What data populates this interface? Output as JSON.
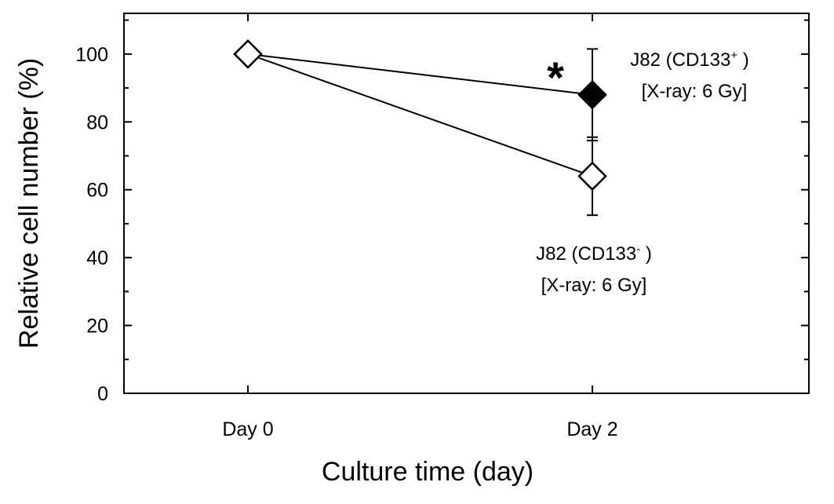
{
  "chart_data": {
    "type": "line",
    "title": "",
    "xlabel": "Culture time (day)",
    "ylabel": "Relative cell number (%)",
    "categories": [
      "Day 0",
      "Day 2"
    ],
    "ylim": [
      0,
      112
    ],
    "yticks": [
      0,
      20,
      40,
      60,
      80,
      100
    ],
    "grid": false,
    "series": [
      {
        "name_line1": "J82 (CD133",
        "name_sup": "+",
        "name_line1_end": " )",
        "name_line2": "[X-ray: 6 Gy]",
        "marker": "filled-diamond",
        "color": "#000000",
        "values": [
          100,
          88
        ],
        "errors": [
          0,
          13.5
        ]
      },
      {
        "name_line1": "J82 (CD133",
        "name_sup": "-",
        "name_line1_end": " )",
        "name_line2": "[X-ray: 6 Gy]",
        "marker": "open-diamond",
        "color": "#000000",
        "values": [
          100,
          64
        ],
        "errors": [
          0,
          11.5
        ]
      }
    ],
    "annotations": [
      {
        "text": "*",
        "category": "Day 2",
        "series": 0
      }
    ]
  }
}
